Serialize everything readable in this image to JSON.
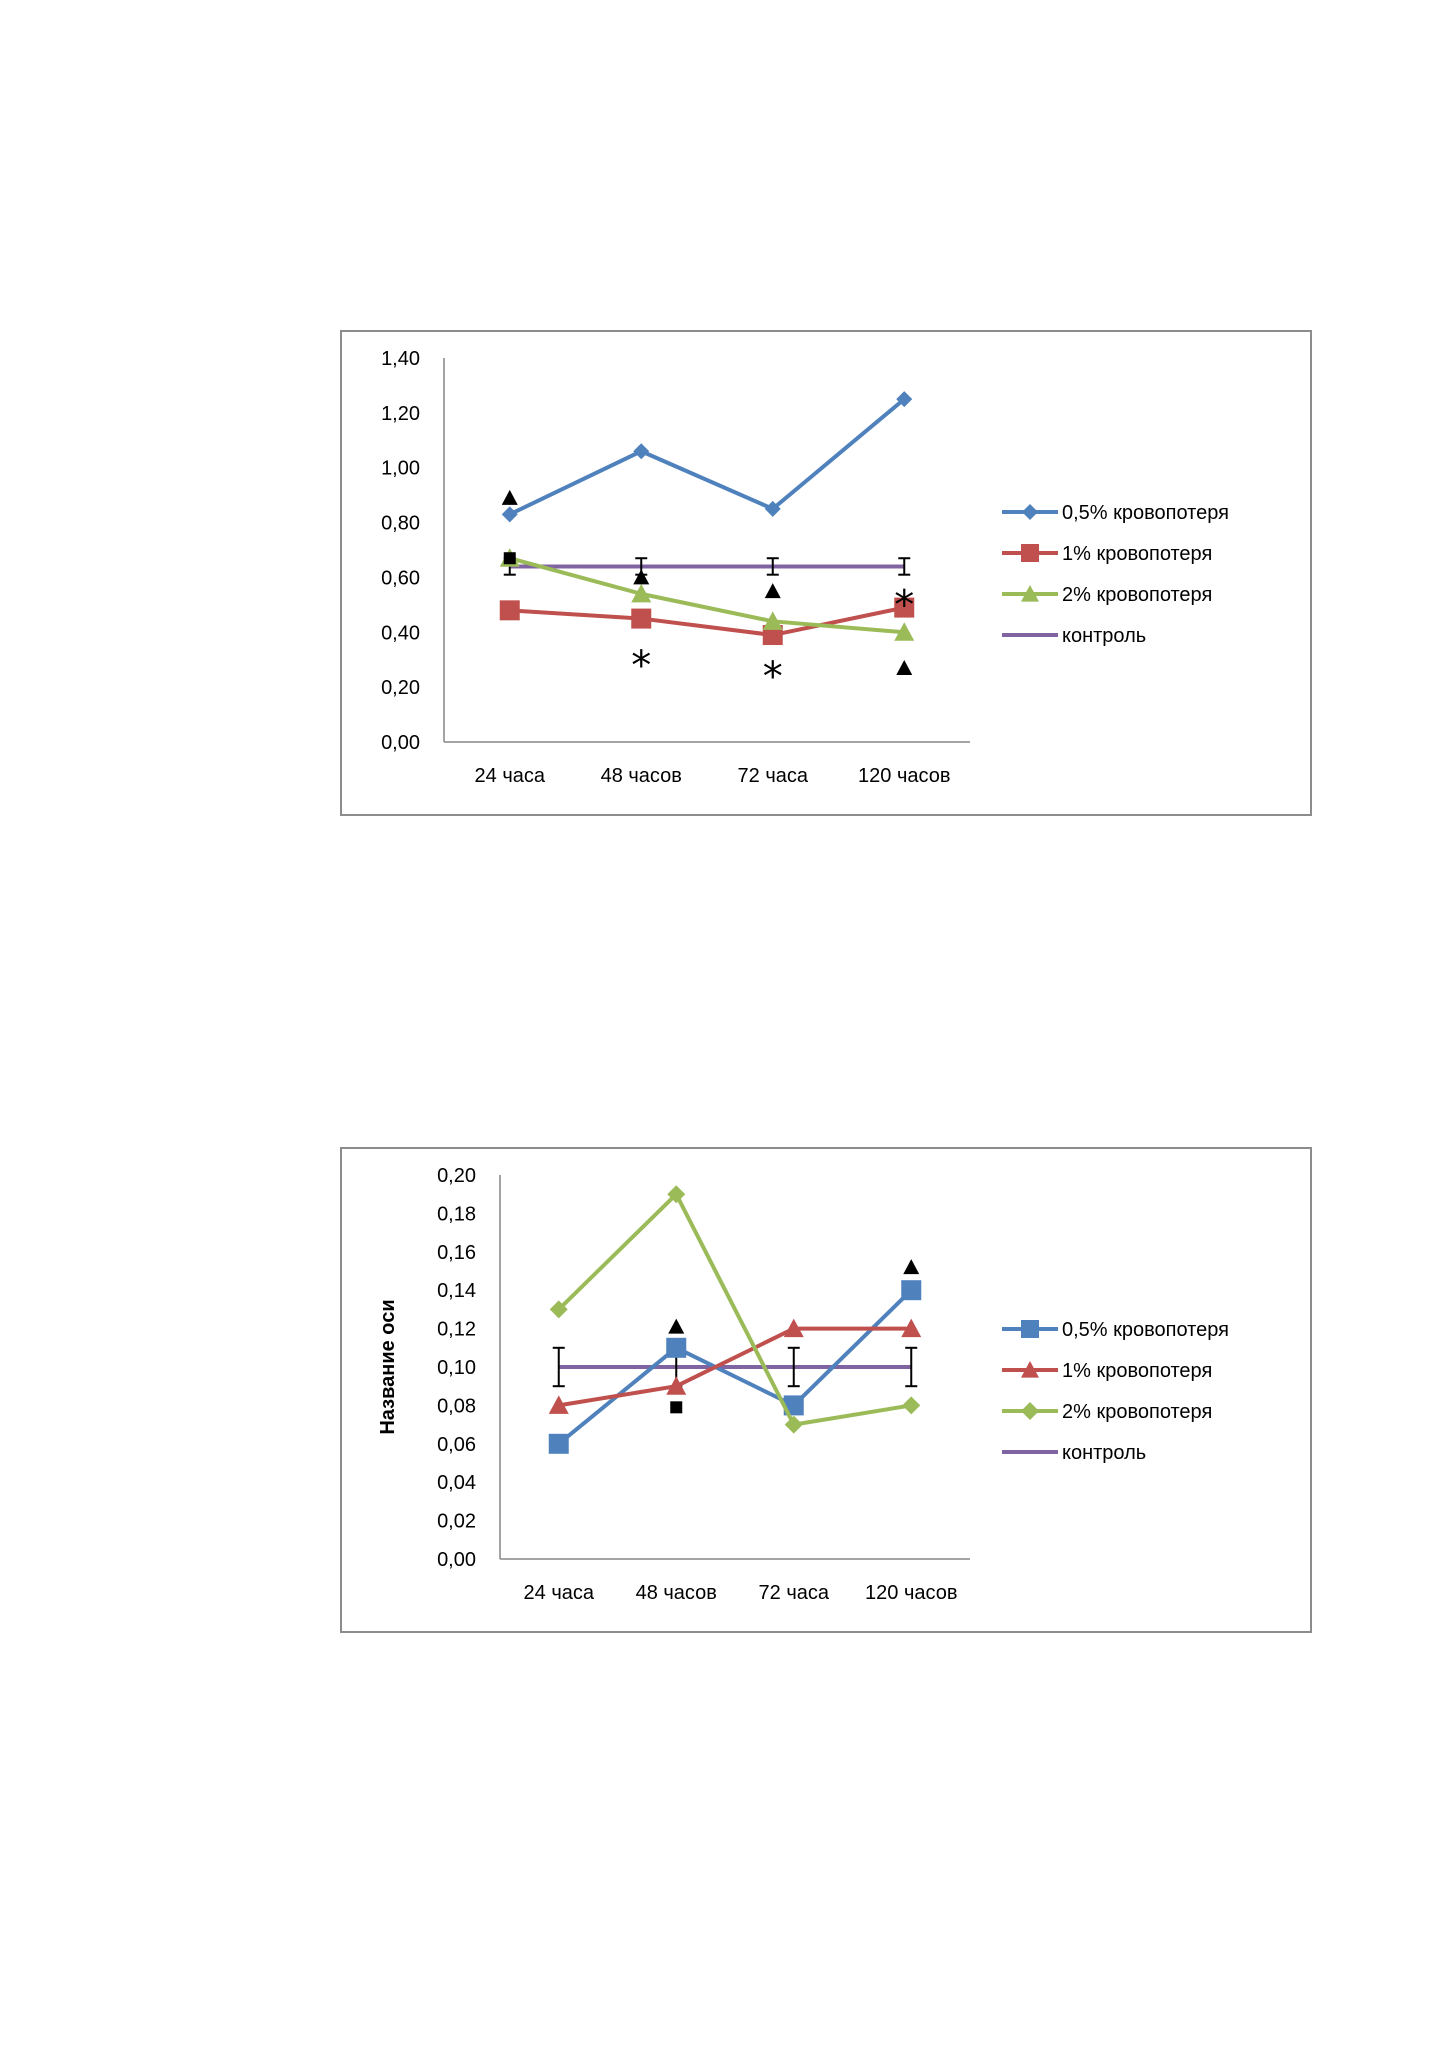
{
  "colors": {
    "blue": "#4F81BD",
    "red": "#C0504D",
    "green": "#9BBB59",
    "purple": "#8064A2",
    "axis": "#868686",
    "frame": "#8c8c8c"
  },
  "chart_data": [
    {
      "type": "line",
      "categories": [
        "24 часа",
        "48 часов",
        "72 часа",
        "120 часов"
      ],
      "ylim": [
        0,
        1.4
      ],
      "yticks": [
        "0,00",
        "0,20",
        "0,40",
        "0,60",
        "0,80",
        "1,00",
        "1,20",
        "1,40"
      ],
      "ylabel": "",
      "legend_position": "right",
      "series": [
        {
          "name": "0,5% кровопотеря",
          "values": [
            0.83,
            1.06,
            0.85,
            1.25
          ],
          "color": "blue",
          "marker": "diamond",
          "marker_size": 8
        },
        {
          "name": "1% кровопотеря",
          "values": [
            0.48,
            0.45,
            0.39,
            0.49
          ],
          "color": "red",
          "marker": "square",
          "marker_size": 10
        },
        {
          "name": "2% кровопотеря",
          "values": [
            0.67,
            0.54,
            0.44,
            0.4
          ],
          "color": "green",
          "marker": "triangle",
          "marker_size": 10
        },
        {
          "name": "контроль",
          "values": [
            0.64,
            0.64,
            0.64,
            0.64
          ],
          "color": "purple",
          "marker": "none",
          "error": 0.03
        }
      ],
      "annotations": [
        {
          "symbol": "triangle",
          "x": 0,
          "y": 0.89
        },
        {
          "symbol": "square",
          "x": 0,
          "y": 0.67
        },
        {
          "symbol": "triangle",
          "x": 1,
          "y": 0.6
        },
        {
          "symbol": "*",
          "x": 1,
          "y": 0.31
        },
        {
          "symbol": "triangle",
          "x": 2,
          "y": 0.55
        },
        {
          "symbol": "*",
          "x": 2,
          "y": 0.27
        },
        {
          "symbol": "*",
          "x": 3,
          "y": 0.53
        },
        {
          "symbol": "triangle",
          "x": 3,
          "y": 0.27
        }
      ]
    },
    {
      "type": "line",
      "categories": [
        "24 часа",
        "48 часов",
        "72 часа",
        "120 часов"
      ],
      "ylim": [
        0,
        0.2
      ],
      "yticks": [
        "0,00",
        "0,02",
        "0,04",
        "0,06",
        "0,08",
        "0,10",
        "0,12",
        "0,14",
        "0,16",
        "0,18",
        "0,20"
      ],
      "ylabel": "Название оси",
      "legend_position": "right",
      "series": [
        {
          "name": "0,5% кровопотеря",
          "values": [
            0.06,
            0.11,
            0.08,
            0.14
          ],
          "color": "blue",
          "marker": "square",
          "marker_size": 10
        },
        {
          "name": "1% кровопотеря",
          "values": [
            0.08,
            0.09,
            0.12,
            0.12
          ],
          "color": "red",
          "marker": "triangle",
          "marker_size": 10
        },
        {
          "name": "2% кровопотеря",
          "values": [
            0.13,
            0.19,
            0.07,
            0.08
          ],
          "color": "green",
          "marker": "diamond",
          "marker_size": 9
        },
        {
          "name": "контроль",
          "values": [
            0.1,
            0.1,
            0.1,
            0.1
          ],
          "color": "purple",
          "marker": "none",
          "error": 0.01
        }
      ],
      "annotations": [
        {
          "symbol": "triangle",
          "x": 1,
          "y": 0.121
        },
        {
          "symbol": "square",
          "x": 1,
          "y": 0.079
        },
        {
          "symbol": "triangle",
          "x": 3,
          "y": 0.152
        }
      ]
    }
  ]
}
